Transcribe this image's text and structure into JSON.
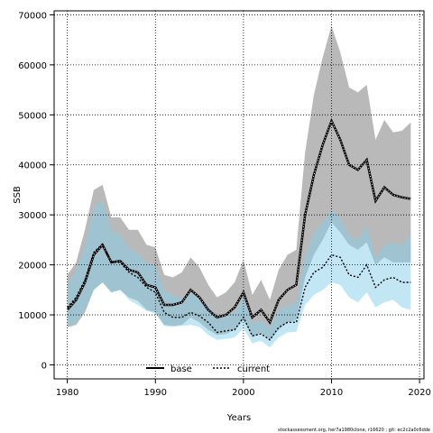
{
  "chart_data": {
    "type": "area",
    "xlabel": "Years",
    "ylabel": "SSB",
    "xlim": [
      1978.5,
      2020.5
    ],
    "ylim": [
      -2800,
      70800
    ],
    "xticks": [
      1980,
      1990,
      2000,
      2010,
      2020
    ],
    "yticks": [
      0,
      10000,
      20000,
      30000,
      40000,
      50000,
      60000,
      70000
    ],
    "grid": true,
    "legend_position": "bottom-center",
    "x": [
      1980,
      1981,
      1982,
      1983,
      1984,
      1985,
      1986,
      1987,
      1988,
      1989,
      1990,
      1991,
      1992,
      1993,
      1994,
      1995,
      1996,
      1997,
      1998,
      1999,
      2000,
      2001,
      2002,
      2003,
      2004,
      2005,
      2006,
      2007,
      2008,
      2009,
      2010,
      2011,
      2012,
      2013,
      2014,
      2015,
      2016,
      2017,
      2018,
      2019
    ],
    "series": [
      {
        "name": "base",
        "color": "#000000",
        "band_color": "#808080",
        "line_style": "solid-dotted",
        "values": [
          11000,
          13000,
          16500,
          22000,
          24000,
          20500,
          20800,
          19000,
          18500,
          16000,
          15500,
          12000,
          12000,
          12500,
          15000,
          13500,
          11000,
          9500,
          10000,
          11500,
          14500,
          9500,
          11000,
          8500,
          13000,
          15000,
          16000,
          30000,
          38000,
          44000,
          48800,
          45000,
          40000,
          39000,
          41000,
          32800,
          35500,
          34000,
          33500,
          33200
        ],
        "lower": [
          7500,
          8000,
          10500,
          15000,
          16500,
          14500,
          15000,
          13500,
          12800,
          11000,
          10500,
          8000,
          7800,
          8000,
          9500,
          8500,
          7000,
          6000,
          6200,
          7000,
          9000,
          5500,
          6500,
          5000,
          7000,
          8500,
          9000,
          17500,
          22000,
          25000,
          28500,
          26500,
          24000,
          23000,
          24500,
          20000,
          21500,
          20500,
          20500,
          20500
        ],
        "upper": [
          18000,
          20500,
          27000,
          35000,
          36000,
          29500,
          29500,
          27000,
          27000,
          24000,
          23500,
          18000,
          17500,
          18500,
          21500,
          19500,
          16000,
          13500,
          14500,
          16500,
          21000,
          14000,
          17000,
          13000,
          19000,
          22000,
          23000,
          42500,
          54000,
          61500,
          67800,
          62500,
          55500,
          54500,
          56000,
          45000,
          49000,
          46500,
          46800,
          48500
        ]
      },
      {
        "name": "current",
        "color": "#000000",
        "band_color": "#87ceeb",
        "line_style": "dotted",
        "values": [
          11500,
          13500,
          17000,
          22500,
          24200,
          20500,
          20500,
          18500,
          17500,
          15500,
          14500,
          10500,
          9500,
          9500,
          10500,
          9800,
          8500,
          6500,
          6800,
          7000,
          9500,
          5800,
          6200,
          5000,
          7500,
          8500,
          8500,
          15500,
          18500,
          19500,
          22000,
          21500,
          18000,
          17500,
          20000,
          15500,
          17000,
          17500,
          16500,
          16500
        ],
        "lower": [
          7800,
          8500,
          11000,
          15000,
          16500,
          14500,
          15000,
          13000,
          12000,
          10800,
          10300,
          7800,
          7600,
          7800,
          8000,
          7600,
          6000,
          5000,
          5200,
          5500,
          7300,
          4300,
          4800,
          3500,
          5500,
          6500,
          6600,
          12000,
          14000,
          15000,
          16500,
          16000,
          13500,
          12500,
          14500,
          11500,
          12500,
          13000,
          11500,
          11000
        ],
        "upper": [
          16000,
          19000,
          24000,
          31500,
          33000,
          27000,
          26000,
          23500,
          22500,
          20500,
          20000,
          15000,
          14000,
          13500,
          14500,
          13500,
          12000,
          9500,
          10000,
          10500,
          13500,
          8500,
          9000,
          7500,
          11000,
          12000,
          12500,
          22000,
          26500,
          28500,
          31000,
          29500,
          26000,
          25000,
          28000,
          21500,
          24000,
          24500,
          24000,
          26000
        ]
      }
    ]
  },
  "footer": {
    "text": "stockassessment.org, her7a1980clone, r16620 ; git: ec2c2a0c6dde"
  }
}
